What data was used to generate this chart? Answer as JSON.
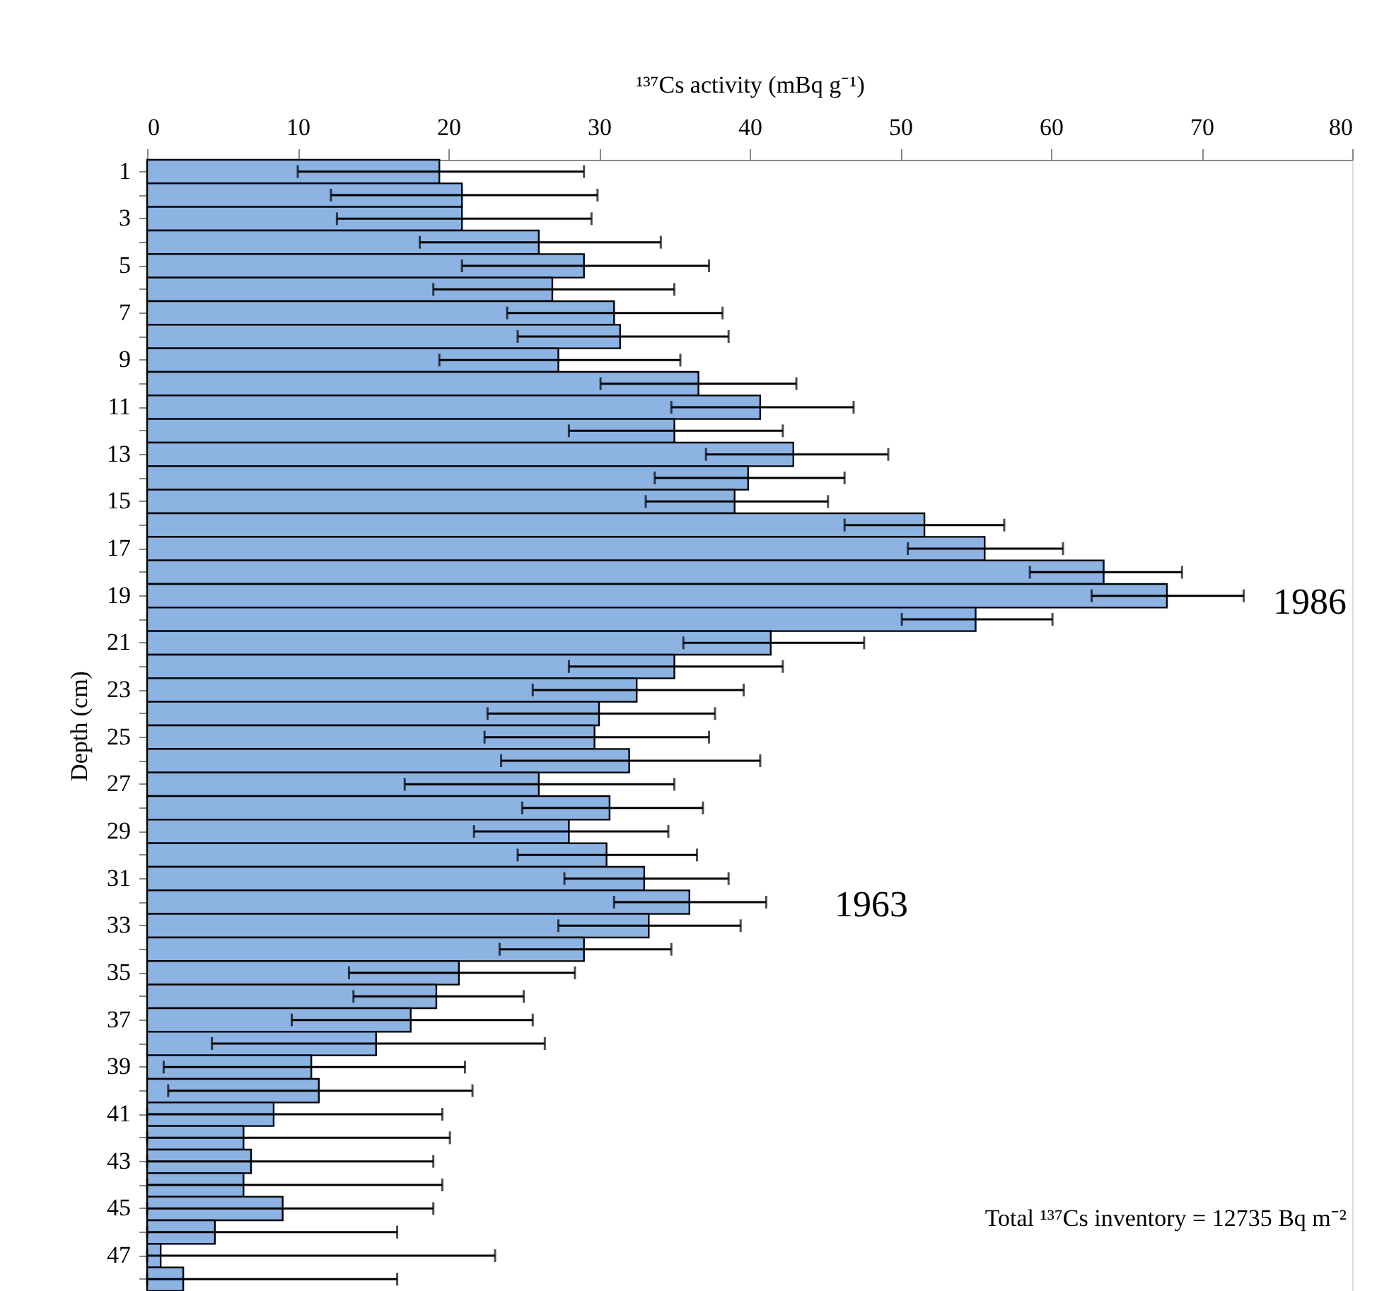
{
  "chart_data": {
    "type": "bar",
    "orientation": "horizontal",
    "xlabel": "¹³⁷Cs activity (mBq g⁻¹)",
    "ylabel": "Depth (cm)",
    "categories": [
      "1",
      null,
      "3",
      null,
      "5",
      null,
      "7",
      null,
      "9",
      null,
      "11",
      null,
      "13",
      null,
      "15",
      null,
      "17",
      null,
      "19",
      null,
      "21",
      null,
      "23",
      null,
      "25",
      null,
      "27",
      null,
      "29",
      null,
      "31",
      null,
      "33",
      null,
      "35",
      null,
      "37",
      null,
      "39",
      null,
      "41",
      null,
      "43",
      null,
      "45",
      null,
      "47",
      null
    ],
    "values": [
      19.4,
      20.9,
      20.9,
      26.0,
      29.0,
      26.9,
      31.0,
      31.4,
      27.3,
      36.6,
      40.7,
      35.0,
      42.9,
      39.9,
      39.0,
      51.6,
      55.6,
      63.5,
      67.7,
      55.0,
      41.4,
      35.0,
      32.5,
      30.0,
      29.7,
      32.0,
      26.0,
      30.7,
      28.0,
      30.5,
      33.0,
      36.0,
      33.3,
      29.0,
      20.7,
      19.2,
      17.5,
      15.2,
      10.9,
      11.4,
      8.4,
      6.4,
      6.9,
      6.4,
      9.0,
      4.5,
      0.9,
      2.4
    ],
    "errors": [
      [
        10.0,
        29.0
      ],
      [
        12.2,
        29.9
      ],
      [
        12.6,
        29.5
      ],
      [
        18.1,
        34.1
      ],
      [
        20.9,
        37.3
      ],
      [
        19.0,
        35.0
      ],
      [
        23.9,
        38.2
      ],
      [
        24.6,
        38.6
      ],
      [
        19.4,
        35.4
      ],
      [
        30.1,
        43.1
      ],
      [
        34.8,
        46.9
      ],
      [
        28.0,
        42.2
      ],
      [
        37.1,
        49.2
      ],
      [
        33.7,
        46.3
      ],
      [
        33.1,
        45.2
      ],
      [
        46.3,
        56.9
      ],
      [
        50.5,
        60.8
      ],
      [
        58.6,
        68.7
      ],
      [
        62.7,
        72.8
      ],
      [
        50.1,
        60.1
      ],
      [
        35.6,
        47.6
      ],
      [
        28.0,
        42.2
      ],
      [
        25.6,
        39.6
      ],
      [
        22.6,
        37.7
      ],
      [
        22.4,
        37.3
      ],
      [
        23.5,
        40.7
      ],
      [
        17.1,
        35.0
      ],
      [
        24.9,
        36.9
      ],
      [
        21.7,
        34.6
      ],
      [
        24.6,
        36.5
      ],
      [
        27.7,
        38.6
      ],
      [
        31.0,
        41.1
      ],
      [
        27.3,
        39.4
      ],
      [
        23.4,
        34.8
      ],
      [
        13.4,
        28.4
      ],
      [
        13.7,
        25.0
      ],
      [
        9.6,
        25.6
      ],
      [
        4.3,
        26.4
      ],
      [
        1.1,
        21.1
      ],
      [
        1.4,
        21.6
      ],
      [
        0,
        19.6
      ],
      [
        0,
        20.1
      ],
      [
        0,
        19.0
      ],
      [
        0,
        19.6
      ],
      [
        0,
        19.0
      ],
      [
        0,
        16.6
      ],
      [
        0,
        23.1
      ],
      [
        0,
        16.6
      ]
    ],
    "color": "#8db3e2",
    "xlim": [
      0,
      80
    ],
    "xticks": [
      0,
      10,
      20,
      30,
      40,
      50,
      60,
      70,
      80
    ],
    "grid": false,
    "annotations": [
      "1986",
      "1963",
      "Total ¹³⁷Cs inventory = 12735 Bq m⁻²"
    ]
  }
}
